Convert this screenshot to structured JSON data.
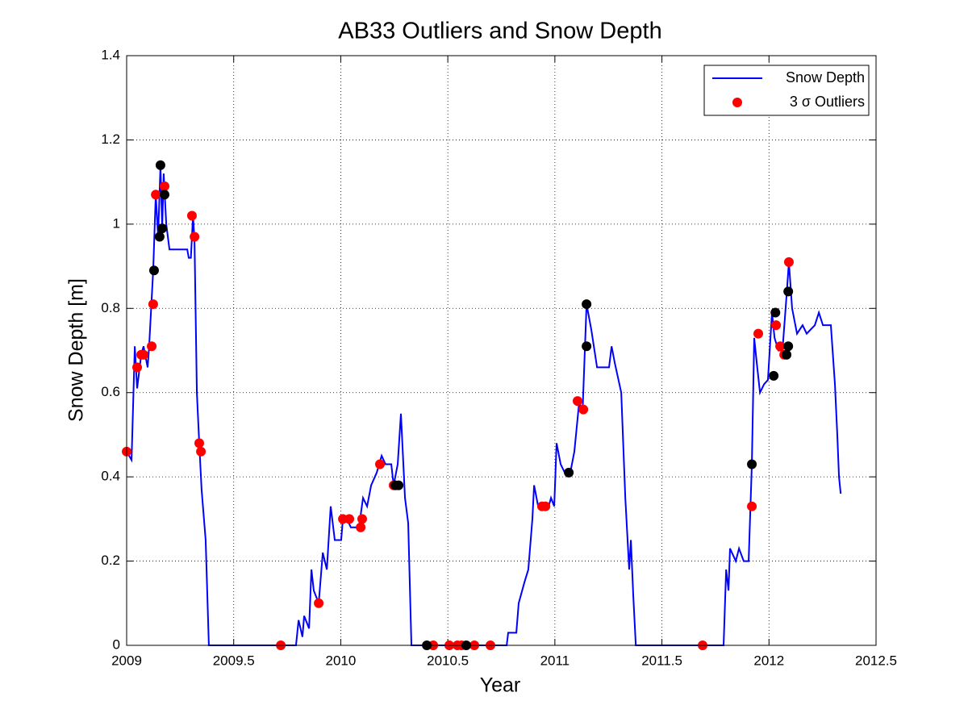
{
  "chart_data": {
    "type": "line",
    "title": "AB33 Outliers and Snow Depth",
    "xlabel": "Year",
    "ylabel": "Snow Depth [m]",
    "xlim": [
      2009,
      2012.5
    ],
    "xticks": [
      2009,
      2009.5,
      2010,
      2010.5,
      2011,
      2011.5,
      2012,
      2012.5
    ],
    "ylim": [
      0,
      1.4
    ],
    "yticks": [
      0,
      0.2,
      0.4,
      0.6,
      0.8,
      1,
      1.2,
      1.4
    ],
    "grid": true,
    "legend": "upper right",
    "series": [
      {
        "name": "Snow Depth",
        "color": "#0000ff",
        "style": "line",
        "x": [
          2009.0,
          2009.023,
          2009.038,
          2009.049,
          2009.068,
          2009.079,
          2009.098,
          2009.105,
          2009.124,
          2009.136,
          2009.147,
          2009.158,
          2009.166,
          2009.173,
          2009.185,
          2009.2,
          2009.283,
          2009.29,
          2009.3,
          2009.31,
          2009.317,
          2009.328,
          2009.339,
          2009.35,
          2009.369,
          2009.384,
          2009.791,
          2009.803,
          2009.821,
          2009.829,
          2009.852,
          2009.863,
          2009.874,
          2009.897,
          2009.916,
          2009.935,
          2009.953,
          2009.972,
          2010.002,
          2010.01,
          2010.029,
          2010.047,
          2010.085,
          2010.104,
          2010.123,
          2010.142,
          2010.168,
          2010.191,
          2010.209,
          2010.236,
          2010.247,
          2010.266,
          2010.281,
          2010.3,
          2010.315,
          2010.33,
          2010.775,
          2010.782,
          2010.82,
          2010.831,
          2010.858,
          2010.876,
          2010.895,
          2010.903,
          2010.922,
          2010.971,
          2010.982,
          2010.997,
          2011.008,
          2011.027,
          2011.046,
          2011.072,
          2011.091,
          2011.114,
          2011.129,
          2011.148,
          2011.17,
          2011.185,
          2011.197,
          2011.253,
          2011.265,
          2011.28,
          2011.31,
          2011.329,
          2011.347,
          2011.355,
          2011.366,
          2011.378,
          2011.788,
          2011.8,
          2011.811,
          2011.818,
          2011.845,
          2011.86,
          2011.882,
          2011.905,
          2011.92,
          2011.931,
          2011.943,
          2011.958,
          2011.977,
          2011.995,
          2012.014,
          2012.026,
          2012.044,
          2012.063,
          2012.082,
          2012.093,
          2012.108,
          2012.131,
          2012.157,
          2012.176,
          2012.214,
          2012.233,
          2012.252,
          2012.289,
          2012.308,
          2012.319,
          2012.327,
          2012.335
        ],
        "values": [
          0.46,
          0.44,
          0.71,
          0.61,
          0.69,
          0.71,
          0.66,
          0.71,
          0.89,
          1.07,
          0.97,
          1.14,
          0.99,
          1.12,
          1.0,
          0.94,
          0.94,
          0.92,
          0.92,
          1.02,
          0.96,
          0.6,
          0.48,
          0.37,
          0.25,
          0,
          0,
          0.06,
          0.02,
          0.07,
          0.04,
          0.18,
          0.13,
          0.1,
          0.22,
          0.18,
          0.33,
          0.25,
          0.25,
          0.3,
          0.3,
          0.28,
          0.28,
          0.35,
          0.33,
          0.38,
          0.41,
          0.45,
          0.43,
          0.43,
          0.38,
          0.43,
          0.55,
          0.35,
          0.29,
          0,
          0,
          0.03,
          0.03,
          0.1,
          0.15,
          0.18,
          0.3,
          0.38,
          0.33,
          0.33,
          0.35,
          0.33,
          0.48,
          0.43,
          0.41,
          0.41,
          0.46,
          0.58,
          0.55,
          0.81,
          0.75,
          0.7,
          0.66,
          0.66,
          0.71,
          0.67,
          0.6,
          0.35,
          0.18,
          0.25,
          0.12,
          0,
          0,
          0.18,
          0.13,
          0.23,
          0.2,
          0.23,
          0.2,
          0.2,
          0.43,
          0.73,
          0.67,
          0.6,
          0.62,
          0.63,
          0.79,
          0.73,
          0.7,
          0.7,
          0.83,
          0.91,
          0.8,
          0.74,
          0.76,
          0.74,
          0.76,
          0.79,
          0.76,
          0.76,
          0.62,
          0.5,
          0.4,
          0.36
        ]
      },
      {
        "name": "3 σ Outliers",
        "color": "#ff0000",
        "style": "marker",
        "x": [
          2009.0,
          2009.049,
          2009.068,
          2009.079,
          2009.117,
          2009.124,
          2009.136,
          2009.177,
          2009.305,
          2009.317,
          2009.339,
          2009.347,
          2009.72,
          2009.897,
          2010.01,
          2010.04,
          2010.093,
          2010.1,
          2010.183,
          2010.247,
          2010.432,
          2010.507,
          2010.545,
          2010.564,
          2010.624,
          2010.699,
          2010.94,
          2010.956,
          2011.106,
          2011.133,
          2011.69,
          2011.92,
          2011.95,
          2012.033,
          2012.052,
          2012.071,
          2012.093
        ],
        "values": [
          0.46,
          0.66,
          0.69,
          0.69,
          0.71,
          0.81,
          1.07,
          1.09,
          1.02,
          0.97,
          0.48,
          0.46,
          0,
          0.1,
          0.3,
          0.3,
          0.28,
          0.3,
          0.43,
          0.38,
          0,
          0,
          0,
          0,
          0,
          0,
          0.33,
          0.33,
          0.58,
          0.56,
          0,
          0.33,
          0.74,
          0.76,
          0.71,
          0.69,
          0.91
        ]
      },
      {
        "color": "#000000",
        "style": "marker",
        "x": [
          2009.128,
          2009.158,
          2009.154,
          2009.166,
          2009.177,
          2010.255,
          2010.27,
          2010.402,
          2010.586,
          2011.065,
          2011.148,
          2011.148,
          2011.92,
          2012.022,
          2012.03,
          2012.082,
          2012.09,
          2012.09
        ],
        "values": [
          0.89,
          1.14,
          0.97,
          0.99,
          1.07,
          0.38,
          0.38,
          0,
          0,
          0.41,
          0.81,
          0.71,
          0.43,
          0.64,
          0.79,
          0.69,
          0.71,
          0.84
        ]
      }
    ]
  }
}
